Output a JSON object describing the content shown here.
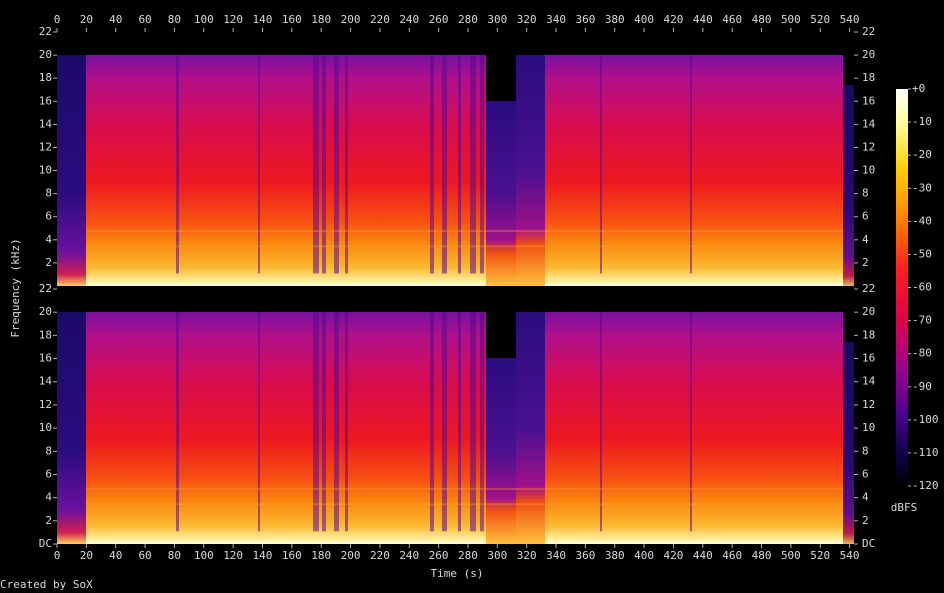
{
  "chart_data": {
    "type": "spectrogram",
    "xlabel": "Time (s)",
    "ylabel": "Frequency (kHz)",
    "footer": "Created by SoX",
    "xlim": [
      0,
      543
    ],
    "xticks": [
      0,
      20,
      40,
      60,
      80,
      100,
      120,
      140,
      160,
      180,
      200,
      220,
      240,
      260,
      280,
      300,
      320,
      340,
      360,
      380,
      400,
      420,
      440,
      460,
      480,
      500,
      520,
      540
    ],
    "ylim": [
      0,
      22
    ],
    "yticks_top": [
      2,
      4,
      6,
      8,
      10,
      12,
      14,
      16,
      18,
      20,
      22
    ],
    "yticks_bottom": [
      {
        "value": 0,
        "label": "DC"
      },
      2,
      4,
      6,
      8,
      10,
      12,
      14,
      16,
      18,
      20,
      22
    ],
    "colorbar": {
      "label": "dBFS",
      "lim": [
        -120,
        0
      ],
      "ticks": [
        {
          "value": 0,
          "label": "+0"
        },
        -10,
        -20,
        -30,
        -40,
        -50,
        -60,
        -70,
        -80,
        -90,
        -100,
        -110,
        -120
      ]
    }
  }
}
